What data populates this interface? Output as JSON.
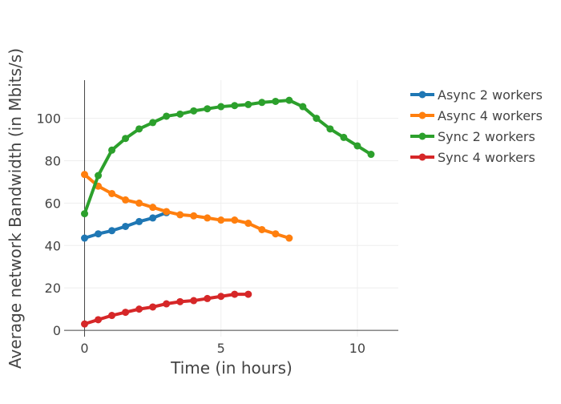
{
  "chart_data": {
    "type": "line",
    "title": "",
    "xlabel": "Time (in hours)",
    "ylabel": "Average network Bandwidth (in Mbits/s)",
    "xlim": [
      -0.75,
      11.5
    ],
    "ylim": [
      -3,
      118
    ],
    "x_ticks": [
      0,
      5,
      10
    ],
    "y_ticks": [
      0,
      20,
      40,
      60,
      80,
      100
    ],
    "grid": true,
    "legend_position": "right",
    "series": [
      {
        "name": "Async 2 workers",
        "color": "#1f77b4",
        "x": [
          0,
          0.5,
          1,
          1.5,
          2,
          2.5,
          3
        ],
        "y": [
          43.5,
          45.5,
          47,
          49,
          51.3,
          53,
          55.5
        ]
      },
      {
        "name": "Async 4 workers",
        "color": "#ff7f0e",
        "x": [
          0,
          0.5,
          1,
          1.5,
          2,
          2.5,
          3,
          3.5,
          4,
          4.5,
          5,
          5.5,
          6,
          6.5,
          7,
          7.5
        ],
        "y": [
          73.5,
          68,
          64.5,
          61.5,
          60,
          58,
          56,
          54.5,
          54,
          53,
          52,
          52,
          50.5,
          47.5,
          45.5,
          43.5
        ]
      },
      {
        "name": "Sync 2 workers",
        "color": "#2ca02c",
        "x": [
          0,
          0.5,
          1,
          1.5,
          2,
          2.5,
          3,
          3.5,
          4,
          4.5,
          5,
          5.5,
          6,
          6.5,
          7,
          7.5,
          8,
          8.5,
          9,
          9.5,
          10,
          10.5
        ],
        "y": [
          55,
          73,
          85,
          90.5,
          95,
          98,
          101,
          102,
          103.5,
          104.5,
          105.5,
          106,
          106.5,
          107.5,
          108,
          108.5,
          105.5,
          100,
          95,
          91,
          87,
          83
        ]
      },
      {
        "name": "Sync 4 workers",
        "color": "#d62728",
        "x": [
          0,
          0.5,
          1,
          1.5,
          2,
          2.5,
          3,
          3.5,
          4,
          4.5,
          5,
          5.5,
          6
        ],
        "y": [
          3,
          5,
          7,
          8.5,
          10,
          11,
          12.5,
          13.5,
          14,
          15,
          16,
          17,
          17
        ]
      }
    ]
  }
}
